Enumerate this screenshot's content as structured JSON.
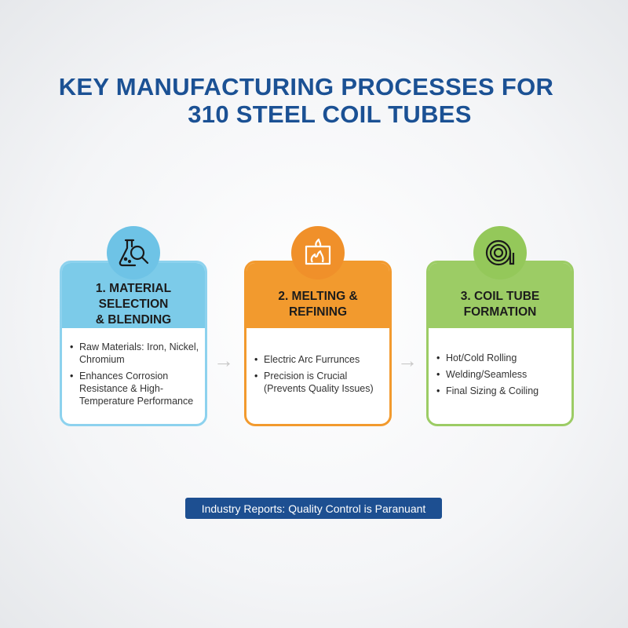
{
  "title": {
    "line1": "KEY MANUFACTURING PROCESSES FOR",
    "line2": "310 STEEL COIL TUBES"
  },
  "colors": {
    "title": "#1b5194",
    "step1": "#7ccbe9",
    "step2": "#f29a2e",
    "step3": "#9ccc65",
    "footer": "#1d4f91"
  },
  "steps": [
    {
      "icon": "flask-magnifier-icon",
      "title_line1": "1. MATERIAL SELECTION",
      "title_line2": "& BLENDING",
      "bullets": [
        "Raw Materials: Iron, Nickel, Chromium",
        "Enhances Corrosion Resistance & High-Temperature Performance"
      ]
    },
    {
      "icon": "furnace-fire-icon",
      "title_line1": "2. MELTING &",
      "title_line2": "REFINING",
      "bullets": [
        "Electric Arc Furrunces",
        "Precision is Crucial (Prevents Quality Issues)"
      ]
    },
    {
      "icon": "coil-spiral-icon",
      "title_line1": "3. COIL TUBE",
      "title_line2": "FORMATION",
      "bullets": [
        "Hot/Cold Rolling",
        "Welding/Seamless",
        "Final Sizing & Coiling"
      ]
    }
  ],
  "arrow": "→",
  "footer": "Industry Reports: Quality Control is Paranuant"
}
